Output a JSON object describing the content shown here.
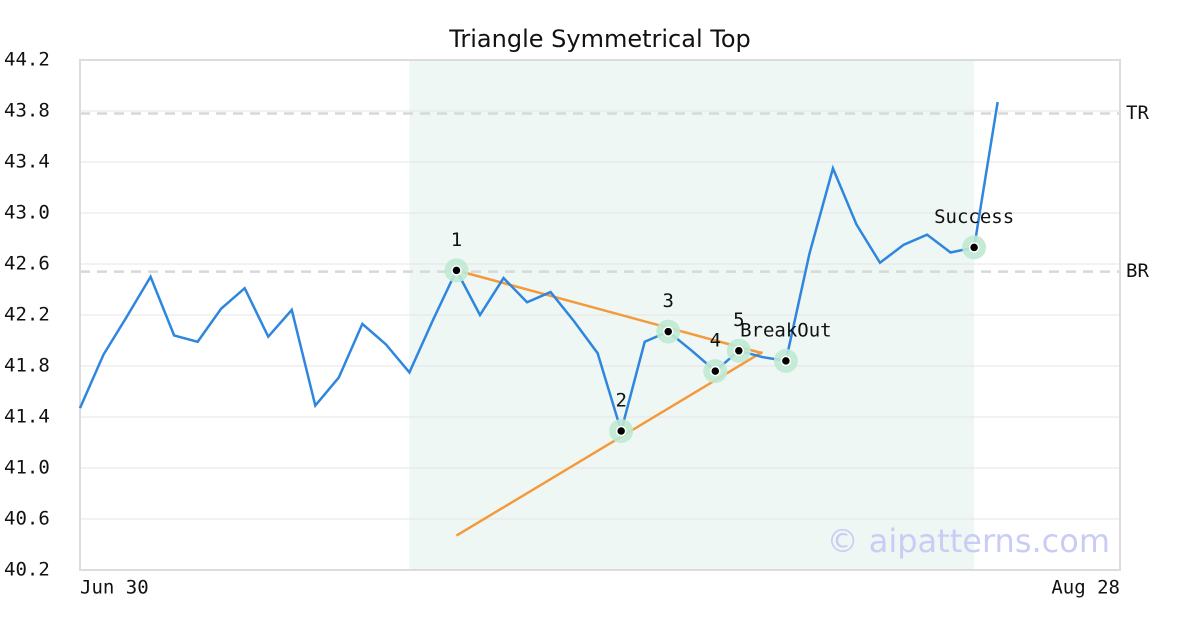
{
  "chart_data": {
    "type": "line",
    "title": "Triangle Symmetrical Top",
    "x": [
      0,
      1,
      2,
      3,
      4,
      5,
      6,
      7,
      8,
      9,
      10,
      11,
      12,
      13,
      14,
      15,
      16,
      17,
      18,
      19,
      20,
      21,
      22,
      23,
      24,
      25,
      26,
      27,
      28,
      29,
      30,
      31,
      32,
      33,
      34,
      35,
      36,
      37,
      38,
      39
    ],
    "values": [
      41.47,
      41.89,
      42.19,
      42.5,
      42.04,
      41.99,
      42.25,
      42.41,
      42.03,
      42.24,
      41.49,
      41.71,
      42.13,
      41.97,
      41.75,
      42.16,
      42.55,
      42.2,
      42.49,
      42.3,
      42.38,
      42.15,
      41.9,
      41.29,
      41.99,
      42.07,
      41.92,
      41.76,
      41.92,
      41.87,
      41.84,
      42.68,
      43.35,
      42.91,
      42.61,
      42.75,
      42.83,
      42.69,
      42.73,
      43.87
    ],
    "color": "#2e86de",
    "xlim": [
      0,
      44.2
    ],
    "xticks": [
      {
        "value": 0,
        "label": "Jun 30"
      },
      {
        "value": 44.2,
        "label": "Aug 28"
      }
    ],
    "ylim": [
      40.2,
      44.2
    ],
    "yticks": [
      {
        "value": 40.2,
        "label": "40.2"
      },
      {
        "value": 40.6,
        "label": "40.6"
      },
      {
        "value": 41,
        "label": "41.0"
      },
      {
        "value": 41.4,
        "label": "41.4"
      },
      {
        "value": 41.8,
        "label": "41.8"
      },
      {
        "value": 42.2,
        "label": "42.2"
      },
      {
        "value": 42.6,
        "label": "42.6"
      },
      {
        "value": 43,
        "label": "43.0"
      },
      {
        "value": 43.4,
        "label": "43.4"
      },
      {
        "value": 43.8,
        "label": "43.8"
      },
      {
        "value": 44.2,
        "label": "44.2"
      }
    ],
    "grid": true,
    "shaded_range": [
      14,
      38
    ],
    "levels": [
      {
        "label": "TR",
        "value": 43.78
      },
      {
        "label": "BR",
        "value": 42.54
      }
    ],
    "trendlines": [
      {
        "x": [
          16,
          29
        ],
        "y": [
          42.55,
          41.9
        ],
        "color": "#f59a3c"
      },
      {
        "x": [
          16,
          29
        ],
        "y": [
          40.47,
          41.91
        ],
        "color": "#f59a3c"
      }
    ],
    "points": [
      {
        "label": "1",
        "x": 16,
        "y": 42.55
      },
      {
        "label": "2",
        "x": 23,
        "y": 41.29
      },
      {
        "label": "3",
        "x": 25,
        "y": 42.07
      },
      {
        "label": "4",
        "x": 27,
        "y": 41.76
      },
      {
        "label": "5",
        "x": 28,
        "y": 41.92
      },
      {
        "label": "BreakOut",
        "x": 30,
        "y": 41.84
      },
      {
        "label": "Success",
        "x": 38,
        "y": 42.73
      }
    ],
    "watermark": "© aipatterns.com"
  }
}
